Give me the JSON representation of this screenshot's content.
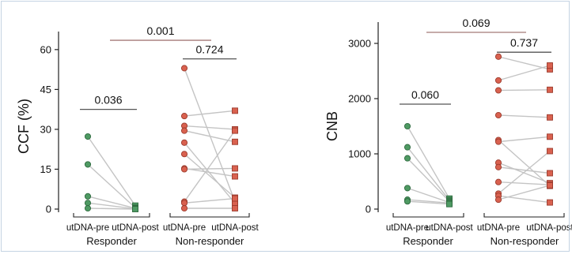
{
  "colors": {
    "responder": "#4f9a63",
    "responder_edge": "#2e6b3f",
    "non_responder": "#d9614f",
    "non_responder_edge": "#9b3b2d",
    "paired_line": "#c4c4c4",
    "bracket_inner": "#555555",
    "bracket_outer": "#a57a78"
  },
  "chart_data": [
    {
      "type": "scatter",
      "name": "ccf-panel",
      "ylabel": "CCF (%)",
      "ylim": [
        0,
        65
      ],
      "yticks": [
        0,
        15,
        30,
        45,
        60
      ],
      "yticklabels": [
        "0",
        "15",
        "30",
        "45",
        "60"
      ],
      "categories": [
        "utDNA-pre",
        "utDNA-post",
        "utDNA-pre",
        "utDNA-post"
      ],
      "groups": [
        "Responder",
        "Non-responder"
      ],
      "marker_shapes": {
        "pre": "circle",
        "post": "square"
      },
      "series": [
        {
          "name": "Responder",
          "pre": [
            27.3,
            16.8,
            4.8,
            2.3,
            0.3
          ],
          "post": [
            1.3,
            0.5,
            0.3,
            0.1,
            0.0
          ]
        },
        {
          "name": "Non-responder",
          "pre": [
            53.0,
            35.0,
            31.3,
            29.5,
            25.0,
            20.7,
            15.3,
            15.0,
            2.8,
            2.3,
            0.3
          ],
          "post": [
            2.8,
            37.0,
            30.0,
            25.3,
            2.2,
            4.3,
            12.3,
            15.3,
            29.5,
            4.0,
            0.3
          ]
        }
      ],
      "annotations": [
        {
          "label": "0.036",
          "between": [
            "Responder utDNA-pre",
            "Responder utDNA-post"
          ],
          "y": 37.5
        },
        {
          "label": "0.724",
          "between": [
            "Non-responder utDNA-pre",
            "Non-responder utDNA-post"
          ],
          "y": 56.5
        },
        {
          "label": "0.001",
          "between": [
            "Responder",
            "Non-responder"
          ],
          "y": 63.5
        }
      ]
    },
    {
      "type": "scatter",
      "name": "cnb-panel",
      "ylabel": "CNB",
      "ylim": [
        0,
        3300
      ],
      "yticks": [
        0,
        1000,
        2000,
        3000
      ],
      "yticklabels": [
        "0",
        "1000",
        "2000",
        "3000"
      ],
      "categories": [
        "utDNA-pre",
        "utDNA-post",
        "utDNA-pre",
        "utDNA-post"
      ],
      "groups": [
        "Responder",
        "Non-responder"
      ],
      "marker_shapes": {
        "pre": "circle",
        "post": "square"
      },
      "series": [
        {
          "name": "Responder",
          "pre": [
            1500,
            1120,
            920,
            380,
            170,
            140
          ],
          "post": [
            190,
            160,
            140,
            120,
            110,
            90
          ]
        },
        {
          "name": "Non-responder",
          "pre": [
            2760,
            2330,
            2150,
            1700,
            1250,
            1220,
            840,
            760,
            490,
            280,
            240,
            170
          ],
          "post": [
            2530,
            2600,
            2160,
            1660,
            420,
            1310,
            470,
            650,
            440,
            1050,
            120,
            430
          ]
        }
      ],
      "annotations": [
        {
          "label": "0.060",
          "between": [
            "Responder utDNA-pre",
            "Responder utDNA-post"
          ],
          "y": 1900
        },
        {
          "label": "0.737",
          "between": [
            "Non-responder utDNA-pre",
            "Non-responder utDNA-post"
          ],
          "y": 2840
        },
        {
          "label": "0.069",
          "between": [
            "Responder",
            "Non-responder"
          ],
          "y": 3200
        }
      ]
    }
  ]
}
